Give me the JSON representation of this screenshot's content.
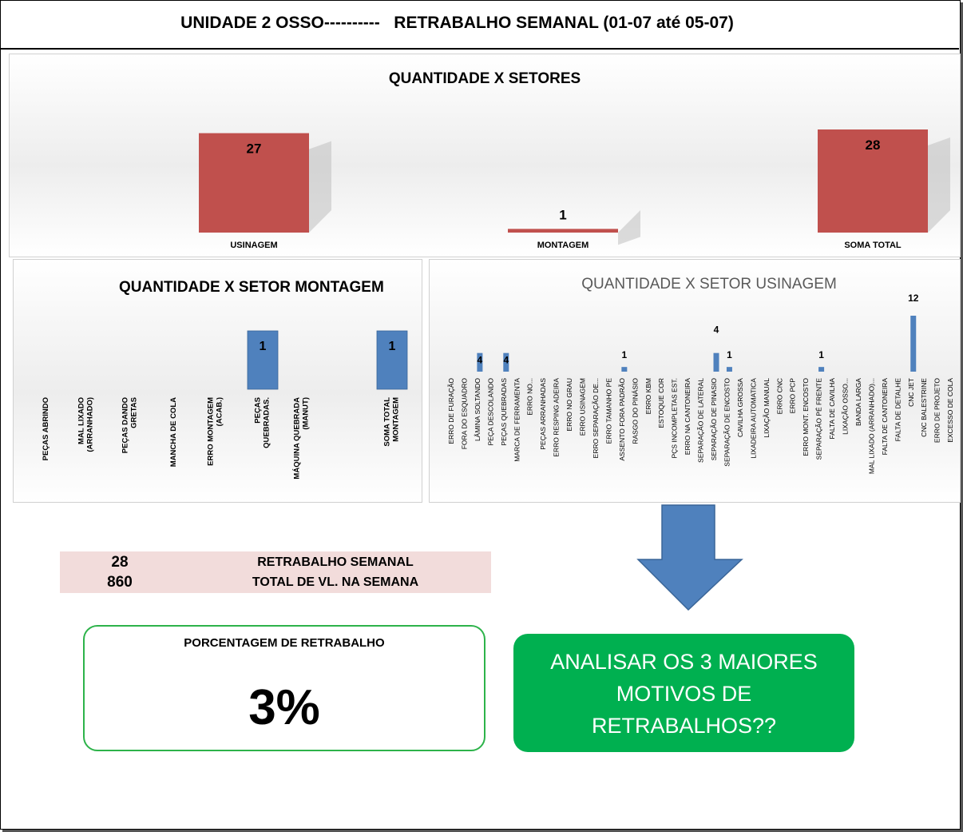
{
  "header": {
    "title": "UNIDADE 2 OSSO----------   RETRABALHO SEMANAL (01-07 até 05-07)"
  },
  "chart_data": [
    {
      "type": "bar",
      "title": "QUANTIDADE X SETORES",
      "categories": [
        "USINAGEM",
        "MONTAGEM",
        "SOMA TOTAL"
      ],
      "values": [
        27,
        1,
        28
      ],
      "ylim": [
        0,
        28
      ],
      "color": "#c0504d",
      "grid": false,
      "legend": "none"
    },
    {
      "type": "bar",
      "title": "QUANTIDADE X SETOR MONTAGEM",
      "categories": [
        "PEÇAS ABRINDO",
        "MAL LIXADO (ARRANHADO)",
        "PEÇAS DANDO GRETAS",
        "MANCHA DE COLA",
        "ERRO MONTAGEM (ACAB.)",
        "PEÇAS QUEBRADAS.",
        "MÁQUINA QUEBRADA (MANUT)",
        "SOMA TOTAL MONTAGEM"
      ],
      "values": [
        0,
        0,
        0,
        0,
        0,
        1,
        0,
        1
      ],
      "ylim": [
        0,
        1
      ],
      "color": "#4f81bd",
      "grid": false,
      "legend": "none"
    },
    {
      "type": "bar",
      "title": "QUANTIDADE X SETOR USINAGEM",
      "categories": [
        "ERRO DE FURAÇÃO",
        "FORA DO ESQUADRO",
        "LÂMINA SOLTANDO",
        "PEÇA DESCOLANDO",
        "PEÇAS QUEBRADAS",
        "MARCA DE FERRAMENTA",
        "ERRO NO...",
        "PEÇAS ARRANHADAS",
        "ERRO RESPING ADEIRA",
        "ERRO NO GRAU",
        "ERRO USINAGEM",
        "ERRO SEPARAÇÃO DE...",
        "ERRO TAMANHO PE",
        "ASSENTO FORA PADRÃO",
        "RASGO DO PINÁSIO",
        "ERRO KBM",
        "ESTOQUE COR",
        "PÇS INCOMPLETAS EST.",
        "ERRO NA CANTONEIRA",
        "SEPARAÇÃO DE LATERAL",
        "SEPARAÇÃO DE PINASIO",
        "SEPARAÇÃO DE ENCOSTO",
        "CAVILHA GROSSA",
        "LIXADEIRA AUTOMATICA",
        "LIXAÇÃO MANUAL",
        "ERRO CNC",
        "ERRO PCP",
        "ERRO MONT. ENCOSTO",
        "SEPARAÇÃO PÉ FRENTE",
        "FALTA DE CAVILHA",
        "LIXAÇÃO OSSO...",
        "BANDA LARGA",
        "MAL LIXADO (ARRANHADO)...",
        "FALTA DE CANTONEIRA",
        "FALTA DE DETALHE",
        "CNC JET",
        "CNC BALESTRINE",
        "ERRO DE PROJETO",
        "EXCESSO DE COLA"
      ],
      "values": [
        0,
        0,
        4,
        0,
        4,
        0,
        0,
        0,
        0,
        0,
        0,
        0,
        0,
        1,
        0,
        0,
        0,
        0,
        0,
        0,
        4,
        1,
        0,
        0,
        0,
        0,
        0,
        0,
        1,
        0,
        0,
        0,
        0,
        0,
        0,
        12,
        0,
        0,
        0
      ],
      "ylim": [
        0,
        12
      ],
      "color": "#4f81bd",
      "grid": false,
      "legend": "none"
    }
  ],
  "summary": {
    "rows": [
      {
        "value": "28",
        "label": "RETRABALHO SEMANAL"
      },
      {
        "value": "860",
        "label": "TOTAL DE VL. NA SEMANA"
      }
    ]
  },
  "percentage": {
    "label": "PORCENTAGEM DE RETRABALHO",
    "value": "3%"
  },
  "callout": {
    "lines": [
      "ANALISAR OS 3 MAIORES",
      "MOTIVOS DE",
      "RETRABALHOS??"
    ]
  },
  "colors": {
    "bar_red": "#c0504d",
    "bar_blue": "#4f81bd",
    "green": "#00b050",
    "summary_bg": "#f2dcdb"
  }
}
